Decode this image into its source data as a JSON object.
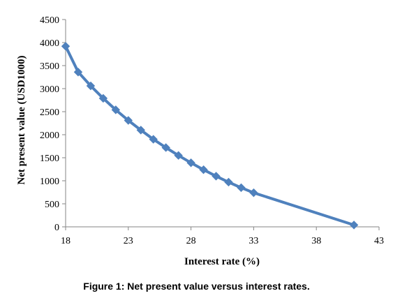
{
  "caption": "Figure 1: Net present value versus interest rates.",
  "chart_data": {
    "type": "line",
    "xlabel": "Interest rate (%)",
    "ylabel": "Net present value (USD1000)",
    "xlim": [
      18,
      43
    ],
    "ylim": [
      0,
      4500
    ],
    "x_ticks": [
      18,
      23,
      28,
      33,
      38,
      43
    ],
    "y_ticks": [
      0,
      500,
      1000,
      1500,
      2000,
      2500,
      3000,
      3500,
      4000,
      4500
    ],
    "grid": false,
    "legend": "none",
    "marker": "diamond",
    "series": [
      {
        "color": "#4f81bd",
        "x": [
          18,
          19,
          20,
          21,
          22,
          23,
          24,
          25,
          26,
          27,
          28,
          29,
          30,
          31,
          32,
          33,
          41
        ],
        "y": [
          3920,
          3360,
          3060,
          2790,
          2540,
          2310,
          2100,
          1900,
          1720,
          1550,
          1390,
          1240,
          1100,
          970,
          850,
          740,
          40
        ]
      }
    ]
  }
}
